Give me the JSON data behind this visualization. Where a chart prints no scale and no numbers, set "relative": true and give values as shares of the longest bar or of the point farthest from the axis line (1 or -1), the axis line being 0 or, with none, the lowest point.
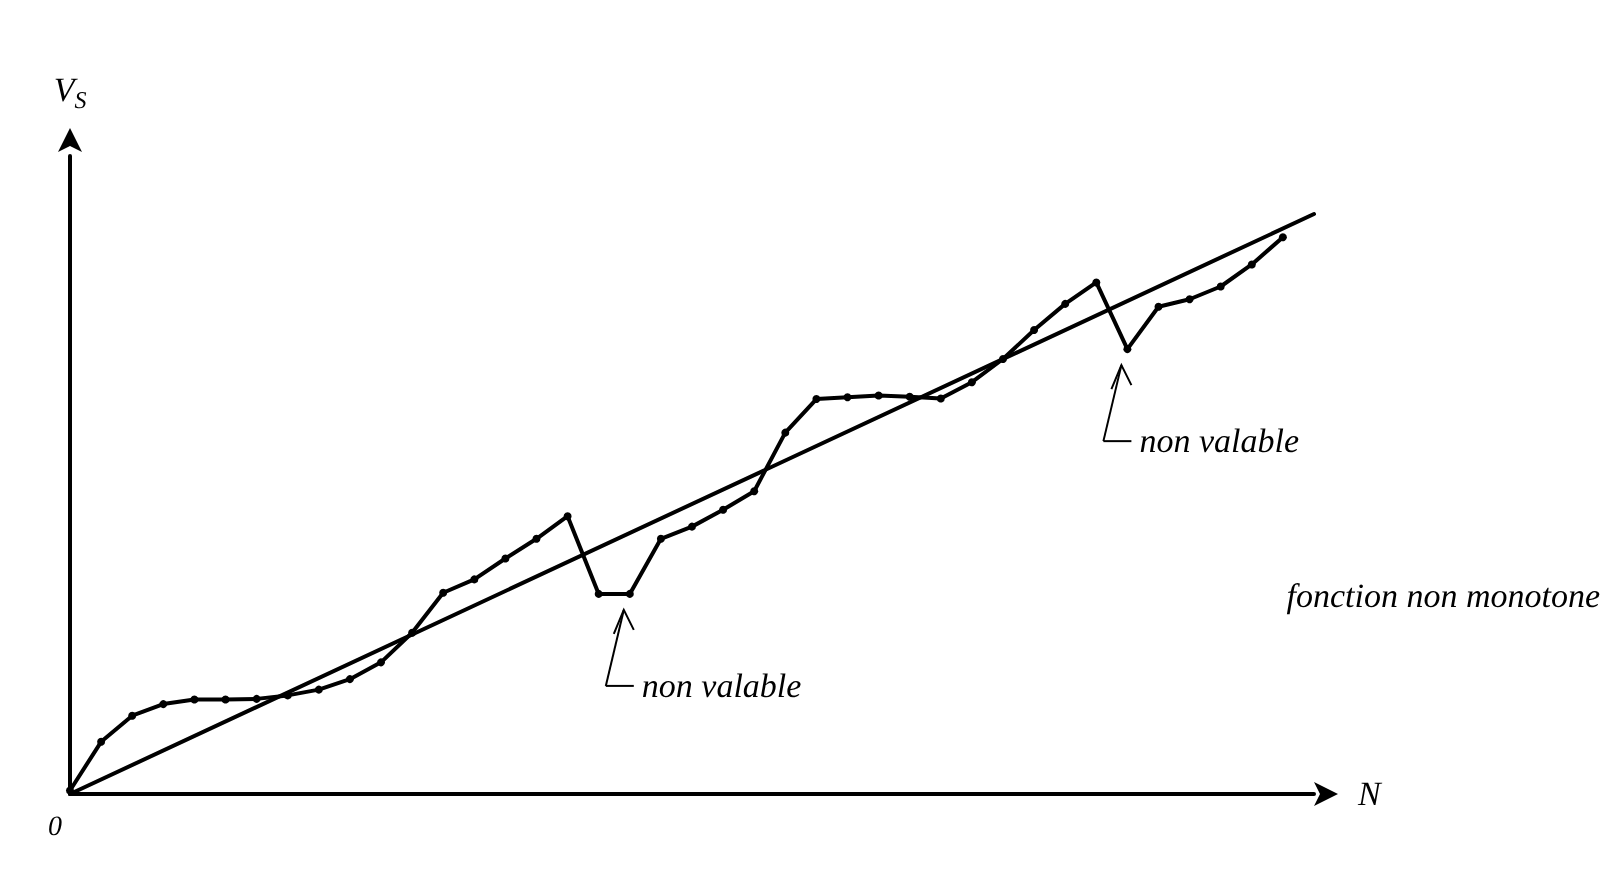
{
  "chart_data": {
    "type": "line",
    "relative": true,
    "xlabel": "N",
    "ylabel": "V$_{S}$",
    "grid": false,
    "categories": [
      null,
      null,
      null,
      null,
      null,
      null,
      null,
      null,
      null,
      null,
      null,
      null,
      null,
      null,
      null,
      null,
      null,
      null,
      null,
      null,
      null,
      null,
      null,
      null,
      null,
      null,
      null,
      null,
      null,
      null,
      null,
      null,
      null,
      null,
      null,
      null,
      null,
      null,
      null,
      null,
      null
    ],
    "series": [
      {
        "color": "#000000",
        "marker": "none",
        "values": [
          0,
          null,
          null,
          null,
          null,
          null,
          null,
          null,
          null,
          null,
          null,
          null,
          null,
          null,
          null,
          null,
          null,
          null,
          null,
          null,
          null,
          null,
          null,
          null,
          null,
          null,
          null,
          null,
          null,
          null,
          null,
          null,
          null,
          null,
          null,
          null,
          null,
          null,
          null,
          null,
          1
        ]
      },
      {
        "color": "#000000",
        "marker": "circle",
        "values": [
          0.006,
          0.09,
          0.135,
          0.155,
          0.163,
          0.163,
          0.164,
          0.17,
          0.18,
          0.198,
          0.227,
          0.278,
          0.347,
          0.37,
          0.406,
          0.44,
          0.479,
          0.345,
          0.345,
          0.44,
          0.461,
          0.49,
          0.522,
          0.623,
          0.681,
          0.684,
          0.687,
          0.685,
          0.682,
          0.71,
          0.75,
          0.8,
          0.845,
          0.882,
          0.767,
          0.84,
          0.853,
          0.875,
          0.913,
          0.96,
          null
        ]
      }
    ],
    "annotations": [
      "0",
      "non valable",
      "non valable",
      "fonction non monotone"
    ]
  }
}
